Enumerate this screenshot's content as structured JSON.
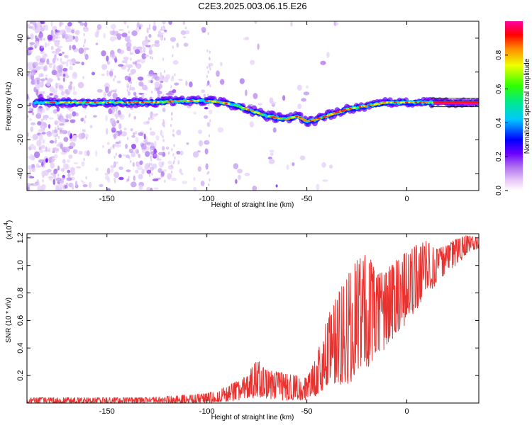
{
  "figure": {
    "title": "C2E3.2025.003.06.15.E26"
  },
  "chart_data": [
    {
      "type": "heatmap",
      "xlabel": "Height of straight line (km)",
      "ylabel": "Frequency (Hz)",
      "xlim": [
        -190,
        36
      ],
      "ylim": [
        -50,
        50
      ],
      "x_ticks": [
        "-150",
        "-100",
        "-50",
        "0"
      ],
      "x_tick_values": [
        -150,
        -100,
        -50,
        0
      ],
      "y_ticks": [
        "40",
        "20",
        "0",
        "-20",
        "-40"
      ],
      "y_tick_values": [
        40,
        20,
        0,
        -20,
        -40
      ],
      "colorbar": {
        "label": "Normalized spectral amplitude",
        "ticks": [
          "0.0",
          "0.2",
          "0.4",
          "0.6",
          "0.8"
        ],
        "tick_values": [
          0.0,
          0.2,
          0.4,
          0.6,
          0.8
        ],
        "range": [
          0,
          1
        ],
        "colormap": "rainbow-white-purple-blue-cyan-green-yellow-orange-red-magenta"
      },
      "ridge": {
        "x": [
          -185,
          -170,
          -150,
          -130,
          -110,
          -100,
          -92,
          -85,
          -80,
          -75,
          -70,
          -65,
          -60,
          -55,
          -50,
          -45,
          -40,
          -35,
          -30,
          -25,
          -20,
          -15,
          -10,
          -5,
          0,
          5,
          10,
          20,
          36
        ],
        "y": [
          2,
          2,
          2,
          2,
          3,
          3,
          2,
          0,
          -2,
          -4,
          -6,
          -7,
          -8,
          -6,
          -9,
          -8,
          -6,
          -4,
          -2,
          -1,
          0,
          1,
          2,
          2,
          2,
          2,
          2,
          2,
          2
        ]
      }
    },
    {
      "type": "line",
      "xlabel": "Height of straight line (km)",
      "ylabel": "SNR (10 * v/v)",
      "scale_label": "(x10",
      "scale_exp": "4",
      "scale_close": ")",
      "xlim": [
        -190,
        36
      ],
      "ylim": [
        0,
        1.23
      ],
      "x_ticks": [
        "-150",
        "-100",
        "-50",
        "0"
      ],
      "x_tick_values": [
        -150,
        -100,
        -50,
        0
      ],
      "y_ticks": [
        "1.2",
        "1.0",
        "0.8",
        "0.6",
        "0.4",
        "0.2"
      ],
      "y_tick_values": [
        1.2,
        1.0,
        0.8,
        0.6,
        0.4,
        0.2
      ],
      "grid": false,
      "series": [
        {
          "color": "#e8322f",
          "envelope_x": [
            -190,
            -160,
            -130,
            -120,
            -110,
            -100,
            -90,
            -80,
            -75,
            -70,
            -60,
            -50,
            -45,
            -40,
            -35,
            -30,
            -25,
            -20,
            -15,
            -10,
            -5,
            0,
            5,
            10,
            15,
            20,
            25,
            30,
            36
          ],
          "envelope_lo": [
            0.0,
            0.0,
            0.0,
            0.0,
            0.0,
            0.0,
            0.01,
            0.03,
            0.04,
            0.03,
            0.02,
            0.02,
            0.06,
            0.12,
            0.14,
            0.12,
            0.18,
            0.25,
            0.35,
            0.4,
            0.5,
            0.58,
            0.68,
            0.8,
            0.85,
            0.95,
            1.0,
            1.08,
            1.12
          ],
          "envelope_hi": [
            0.04,
            0.04,
            0.04,
            0.05,
            0.06,
            0.07,
            0.12,
            0.2,
            0.32,
            0.24,
            0.22,
            0.18,
            0.35,
            0.62,
            0.78,
            0.95,
            1.05,
            1.1,
            0.95,
            0.98,
            1.05,
            1.1,
            1.15,
            1.18,
            1.12,
            1.15,
            1.2,
            1.22,
            1.2
          ]
        }
      ]
    }
  ]
}
